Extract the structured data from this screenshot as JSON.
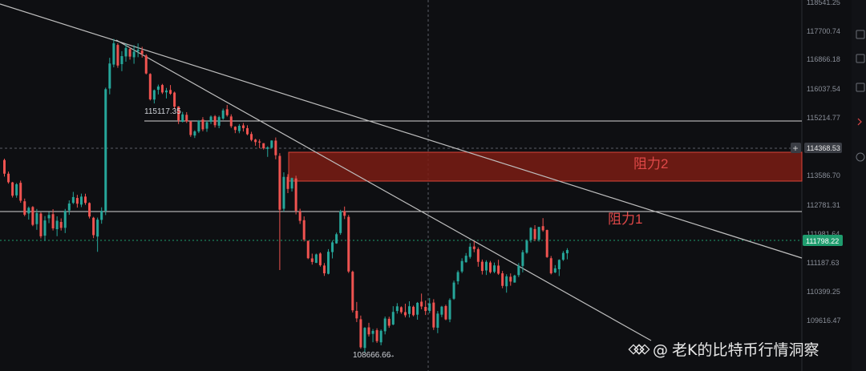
{
  "chart_data": {
    "type": "candlestick",
    "y_axis_ticks": [
      "118541.25",
      "117700.74",
      "116866.18",
      "116037.54",
      "115214.77",
      "114368.53",
      "113586.70",
      "112781.31",
      "111981.64",
      "111798.22",
      "111187.63",
      "110399.25",
      "109616.47"
    ],
    "current_price": "111798.22",
    "crosshair_price": "114368.53",
    "high_label": "115117.35",
    "low_label": "108666.66",
    "resistance_1": {
      "label": "阻力1",
      "price": 112781.31
    },
    "resistance_2": {
      "label": "阻力2",
      "price_low": 113500,
      "price_high": 114150
    },
    "horizontal_levels": [
      115214.77,
      112781.31
    ],
    "colors": {
      "up": "#26a69a",
      "down": "#ef5350",
      "zone_fill": "#7a1c14",
      "zone_edge": "#d9443a",
      "price_badge": "#1f9c6e"
    },
    "ohlc": [
      [
        114101,
        114141,
        113640,
        113720
      ],
      [
        113720,
        113779,
        113442,
        113482
      ],
      [
        113476,
        113492,
        113053,
        113105
      ],
      [
        113114,
        113458,
        113049,
        113424
      ],
      [
        113465,
        113526,
        112906,
        112965
      ],
      [
        112949,
        113025,
        112531,
        112574
      ],
      [
        112608,
        112803,
        112437,
        112766
      ],
      [
        112789,
        112814,
        112253,
        112290
      ],
      [
        112310,
        112734,
        112151,
        112621
      ],
      [
        112605,
        112642,
        111912,
        111971
      ],
      [
        111988,
        112537,
        111840,
        112413
      ],
      [
        112473,
        112652,
        112337,
        112567
      ],
      [
        112589,
        112728,
        112133,
        112192
      ],
      [
        112170,
        112528,
        111973,
        112405
      ],
      [
        112371,
        112471,
        112131,
        112205
      ],
      [
        112207,
        112735,
        112061,
        112679
      ],
      [
        112693,
        112974,
        112571,
        112886
      ],
      [
        112904,
        113211,
        112870,
        113067
      ],
      [
        113042,
        113129,
        112772,
        112881
      ],
      [
        112856,
        113163,
        112786,
        113079
      ],
      [
        113080,
        113159,
        112851,
        112903
      ],
      [
        112900,
        112919,
        112468,
        112522
      ],
      [
        112489,
        112514,
        111918,
        112003
      ],
      [
        111963,
        112493,
        111536,
        112435
      ],
      [
        112429,
        112780,
        112322,
        112681
      ],
      [
        112681,
        116125,
        112564,
        116081
      ],
      [
        116100,
        116959,
        115938,
        116800
      ],
      [
        116770,
        117485,
        116692,
        117363
      ],
      [
        117318,
        117366,
        116679,
        116743
      ],
      [
        116782,
        117144,
        116585,
        117006
      ],
      [
        116997,
        117351,
        116849,
        117233
      ],
      [
        117202,
        117255,
        116908,
        116992
      ],
      [
        116974,
        117313,
        116792,
        117130
      ],
      [
        117144,
        117360,
        116976,
        117183
      ],
      [
        117160,
        117266,
        116964,
        117067
      ],
      [
        117022,
        117059,
        116495,
        116521
      ],
      [
        116507,
        116528,
        115766,
        115798
      ],
      [
        115791,
        116073,
        115683,
        116051
      ],
      [
        116065,
        116209,
        115935,
        116156
      ],
      [
        116198,
        116230,
        115947,
        115990
      ],
      [
        115993,
        116117,
        115823,
        116045
      ],
      [
        116059,
        116197,
        115923,
        115955
      ],
      [
        115986,
        116014,
        115522,
        115594
      ],
      [
        115598,
        115607,
        115107,
        115211
      ],
      [
        115170,
        115447,
        115154,
        115378
      ],
      [
        115365,
        115440,
        115138,
        115181
      ],
      [
        115175,
        115196,
        114749,
        114801
      ],
      [
        114786,
        114932,
        114718,
        114900
      ],
      [
        114900,
        115219,
        114855,
        115201
      ],
      [
        115232,
        115300,
        114905,
        114960
      ],
      [
        114978,
        115195,
        114890,
        115157
      ],
      [
        115171,
        115347,
        115109,
        115315
      ],
      [
        115324,
        115359,
        115011,
        115074
      ],
      [
        115061,
        115341,
        114991,
        115301
      ],
      [
        115262,
        115540,
        115226,
        115488
      ],
      [
        115520,
        115642,
        115315,
        115355
      ],
      [
        115319,
        115379,
        114999,
        115048
      ],
      [
        115032,
        115046,
        114853,
        114942
      ],
      [
        114912,
        115106,
        114850,
        115058
      ],
      [
        115070,
        115136,
        114899,
        114993
      ],
      [
        114993,
        115073,
        114795,
        114823
      ],
      [
        114829,
        114890,
        114625,
        114664
      ],
      [
        114671,
        114696,
        114501,
        114604
      ],
      [
        114620,
        114682,
        114433,
        114592
      ],
      [
        114572,
        114573,
        114393,
        114429
      ],
      [
        114414,
        114486,
        114190,
        114455
      ],
      [
        114446,
        114653,
        114419,
        114646
      ],
      [
        114644,
        114732,
        114122,
        114236
      ],
      [
        114217,
        114295,
        111028,
        112713
      ],
      [
        112740,
        113758,
        112660,
        113631
      ],
      [
        113631,
        113705,
        113178,
        113294
      ],
      [
        113306,
        113611,
        113221,
        113597
      ],
      [
        113587,
        113663,
        112582,
        112681
      ],
      [
        112668,
        112740,
        112316,
        112402
      ],
      [
        112420,
        112526,
        111826,
        111877
      ],
      [
        111844,
        111850,
        111332,
        111358
      ],
      [
        111352,
        111486,
        111179,
        111254
      ],
      [
        111227,
        111487,
        111224,
        111464
      ],
      [
        111488,
        111520,
        111123,
        111163
      ],
      [
        111153,
        111222,
        110864,
        110936
      ],
      [
        110922,
        111612,
        110906,
        111538
      ],
      [
        111529,
        111849,
        111352,
        111801
      ],
      [
        111772,
        112073,
        111761,
        112028
      ],
      [
        112061,
        112711,
        112011,
        112672
      ],
      [
        112676,
        112802,
        112452,
        112543
      ],
      [
        112512,
        112566,
        110945,
        110987
      ],
      [
        110980,
        111011,
        109840,
        109901
      ],
      [
        109886,
        110135,
        109573,
        109676
      ],
      [
        109652,
        109755,
        108829,
        108868
      ],
      [
        108851,
        109432,
        108716,
        109412
      ],
      [
        109425,
        109551,
        109168,
        109229
      ],
      [
        109244,
        109378,
        109008,
        109326
      ],
      [
        109346,
        109400,
        108990,
        109040
      ],
      [
        109007,
        109367,
        108924,
        109329
      ],
      [
        109317,
        109728,
        109229,
        109673
      ],
      [
        109664,
        109722,
        109413,
        109471
      ],
      [
        109505,
        110017,
        109485,
        109857
      ],
      [
        109883,
        110102,
        109809,
        110013
      ],
      [
        109988,
        110013,
        109804,
        109851
      ],
      [
        109851,
        110086,
        109704,
        109763
      ],
      [
        109800,
        110154,
        109700,
        110015
      ],
      [
        110000,
        110034,
        109732,
        109766
      ],
      [
        109780,
        110134,
        109639,
        110110
      ],
      [
        110143,
        110370,
        109930,
        110009
      ],
      [
        109997,
        110175,
        109771,
        109883
      ],
      [
        109883,
        110245,
        109821,
        110094
      ],
      [
        110118,
        110212,
        109353,
        109422
      ],
      [
        109415,
        109882,
        109263,
        109810
      ],
      [
        109780,
        110026,
        109711,
        110004
      ],
      [
        110020,
        110059,
        109625,
        109648
      ],
      [
        109648,
        110239,
        109569,
        110191
      ],
      [
        110226,
        110732,
        110195,
        110677
      ],
      [
        110712,
        111017,
        110624,
        110969
      ],
      [
        110987,
        111356,
        110941,
        111279
      ],
      [
        111245,
        111502,
        111235,
        111427
      ],
      [
        111394,
        111780,
        111346,
        111680
      ],
      [
        111686,
        111835,
        111525,
        111614
      ],
      [
        111610,
        111660,
        111120,
        111257
      ],
      [
        111260,
        111321,
        110902,
        111003
      ],
      [
        111016,
        111301,
        110889,
        111256
      ],
      [
        111237,
        111282,
        110928,
        110967
      ],
      [
        110977,
        111236,
        110938,
        111157
      ],
      [
        111151,
        111314,
        110892,
        110926
      ],
      [
        110936,
        111002,
        110519,
        110585
      ],
      [
        110574,
        110910,
        110395,
        110851
      ],
      [
        110839,
        110933,
        110589,
        110705
      ],
      [
        110678,
        110896,
        110675,
        110873
      ],
      [
        110887,
        111223,
        110832,
        111148
      ],
      [
        111142,
        111588,
        110962,
        111526
      ],
      [
        111512,
        111885,
        111482,
        111848
      ],
      [
        111866,
        112224,
        111797,
        112206
      ],
      [
        112173,
        112281,
        111832,
        111890
      ],
      [
        111874,
        112236,
        111824,
        112232
      ],
      [
        112254,
        112478,
        112097,
        112137
      ],
      [
        112146,
        112157,
        111367,
        111390
      ],
      [
        111358,
        111419,
        110904,
        110935
      ],
      [
        110961,
        111165,
        110941,
        111075
      ],
      [
        111050,
        111326,
        110860,
        111311
      ],
      [
        111315,
        111558,
        111281,
        111505
      ],
      [
        111495,
        111638,
        111328,
        111585
      ]
    ]
  },
  "watermark": {
    "prefix": "@",
    "text": "老K的比特币行情洞察"
  },
  "icons": [
    "diamond-logo-icon",
    "crosshair-plus-icon",
    "toolbar-icon"
  ]
}
